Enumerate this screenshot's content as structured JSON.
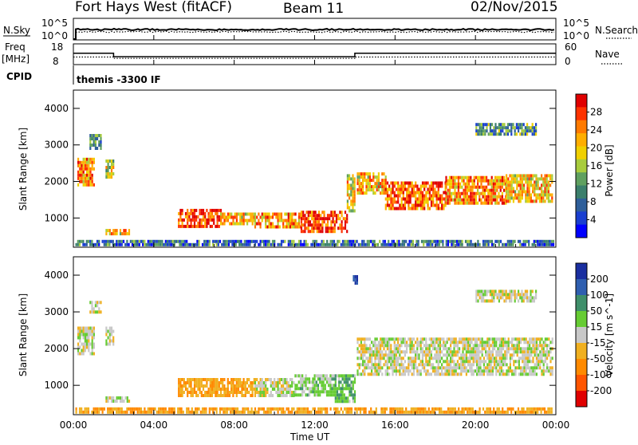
{
  "header": {
    "station": "Fort Hays West (fitACF)",
    "beam": "Beam 11",
    "date": "02/Nov/2015"
  },
  "params": {
    "nsky_label": "N.Sky",
    "nsearch_label": "N.Search",
    "freq_label_1": "Freq",
    "freq_label_2": "[MHz]",
    "nave_label": "Nave",
    "cpid_label": "CPID",
    "cpid_text": "themis -3300 IF",
    "noise_ticks": [
      "10^5",
      "10^0"
    ],
    "freq_ticks": [
      "18",
      "8"
    ],
    "nave_ticks": [
      "60",
      "0"
    ],
    "freq_mhz": [
      {
        "t": 0.0,
        "v": 13.5
      },
      {
        "t": 2.0,
        "v": 11.8
      },
      {
        "t": 14.0,
        "v": 13.5
      },
      {
        "t": 24.0,
        "v": 13.5
      }
    ],
    "nave": [
      {
        "t": 0.0,
        "v": 22
      },
      {
        "t": 2.0,
        "v": 18
      },
      {
        "t": 14.0,
        "v": 22
      },
      {
        "t": 24.0,
        "v": 22
      }
    ]
  },
  "x_axis": {
    "label": "Time UT",
    "ticks": [
      "00:00",
      "04:00",
      "08:00",
      "12:00",
      "16:00",
      "20:00",
      "00:00"
    ],
    "range_hours": [
      0,
      24
    ]
  },
  "panels": [
    {
      "id": "power",
      "ylabel": "Slant Range [km]",
      "yticks": [
        1000,
        2000,
        3000,
        4000
      ],
      "cbar_label": "Power [dB]",
      "cbar_ticks": [
        "28",
        "24",
        "20",
        "16",
        "12",
        "8",
        "4"
      ],
      "cbar_colors": [
        "#e00000",
        "#ff3300",
        "#ff7a00",
        "#ffae00",
        "#f0d000",
        "#a8cc3c",
        "#5fa05f",
        "#3b7f6c",
        "#2f5f9a",
        "#1a3fd0",
        "#0000ff"
      ]
    },
    {
      "id": "velocity",
      "ylabel": "Slant Range [km]",
      "yticks": [
        1000,
        2000,
        3000,
        4000
      ],
      "cbar_label": "Velocity [m s^-1]",
      "cbar_ticks": [
        "200",
        "100",
        "50",
        "15",
        "-15",
        "-50",
        "-100",
        "-200"
      ],
      "cbar_colors": [
        "#1a2fa0",
        "#2f5fb0",
        "#3f8f6a",
        "#66cc33",
        "#c8c8c8",
        "#f0b020",
        "#ff8a00",
        "#ff5500",
        "#e00000"
      ]
    }
  ],
  "chart_data": [
    {
      "type": "heatmap",
      "title": "Power",
      "x_units": "hours UT",
      "y_units": "km",
      "ylim": [
        200,
        4500
      ],
      "zlim": [
        0,
        30
      ],
      "blobs": [
        {
          "t0": 0.2,
          "t1": 1.0,
          "r0": 1950,
          "r1": 2650,
          "v": 22
        },
        {
          "t0": 1.6,
          "t1": 2.0,
          "r0": 2100,
          "r1": 2600,
          "v": 16
        },
        {
          "t0": 0.8,
          "t1": 1.4,
          "r0": 2900,
          "r1": 3300,
          "v": 10
        },
        {
          "t0": 1.6,
          "t1": 2.8,
          "r0": 550,
          "r1": 700,
          "v": 20
        },
        {
          "t0": 5.2,
          "t1": 7.3,
          "r0": 800,
          "r1": 1250,
          "v": 27
        },
        {
          "t0": 7.3,
          "t1": 9.0,
          "r0": 850,
          "r1": 1150,
          "v": 20
        },
        {
          "t0": 9.0,
          "t1": 11.3,
          "r0": 800,
          "r1": 1150,
          "v": 22
        },
        {
          "t0": 11.3,
          "t1": 13.6,
          "r0": 600,
          "r1": 1200,
          "v": 26
        },
        {
          "t0": 13.6,
          "t1": 14.0,
          "r0": 1200,
          "r1": 2200,
          "v": 18
        },
        {
          "t0": 14.1,
          "t1": 15.5,
          "r0": 1700,
          "r1": 2250,
          "v": 20
        },
        {
          "t0": 15.5,
          "t1": 18.5,
          "r0": 1300,
          "r1": 2000,
          "v": 24
        },
        {
          "t0": 18.5,
          "t1": 21.5,
          "r0": 1450,
          "r1": 2150,
          "v": 22
        },
        {
          "t0": 21.5,
          "t1": 23.8,
          "r0": 1500,
          "r1": 2200,
          "v": 20
        },
        {
          "t0": 20.0,
          "t1": 23.0,
          "r0": 3300,
          "r1": 3600,
          "v": 10
        },
        {
          "t0": 0.1,
          "t1": 23.9,
          "r0": 250,
          "r1": 400,
          "v": 8
        }
      ]
    },
    {
      "type": "heatmap",
      "title": "Velocity",
      "x_units": "hours UT",
      "y_units": "km",
      "ylim": [
        200,
        4500
      ],
      "zlim": [
        -200,
        200
      ],
      "blobs": [
        {
          "t0": 0.2,
          "t1": 1.0,
          "r0": 1900,
          "r1": 2600,
          "v": 0
        },
        {
          "t0": 1.6,
          "t1": 2.0,
          "r0": 2100,
          "r1": 2600,
          "v": 0
        },
        {
          "t0": 0.8,
          "t1": 1.4,
          "r0": 3000,
          "r1": 3300,
          "v": 0
        },
        {
          "t0": 1.6,
          "t1": 2.8,
          "r0": 550,
          "r1": 700,
          "v": 0
        },
        {
          "t0": 5.2,
          "t1": 9.0,
          "r0": 750,
          "r1": 1200,
          "v": -45
        },
        {
          "t0": 9.0,
          "t1": 11.0,
          "r0": 750,
          "r1": 1200,
          "v": 0
        },
        {
          "t0": 11.0,
          "t1": 13.0,
          "r0": 700,
          "r1": 1300,
          "v": 25
        },
        {
          "t0": 13.0,
          "t1": 14.0,
          "r0": 600,
          "r1": 1300,
          "v": 40
        },
        {
          "t0": 13.9,
          "t1": 14.1,
          "r0": 3800,
          "r1": 4000,
          "v": 200
        },
        {
          "t0": 14.1,
          "t1": 23.8,
          "r0": 1300,
          "r1": 2300,
          "v": 0
        },
        {
          "t0": 20.0,
          "t1": 23.0,
          "r0": 3300,
          "r1": 3600,
          "v": 0
        },
        {
          "t0": 0.1,
          "t1": 23.9,
          "r0": 250,
          "r1": 400,
          "v": -50
        }
      ]
    }
  ]
}
